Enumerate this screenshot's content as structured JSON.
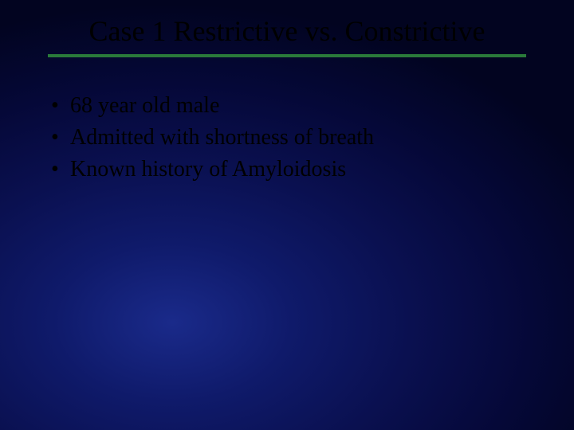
{
  "slide": {
    "title": "Case 1 Restrictive vs. Constrictive",
    "divider_color": "#2a7a3a",
    "bullets": [
      "68 year old male",
      "Admitted with shortness of breath",
      "Known history of Amyloidosis"
    ],
    "background": {
      "type": "radial-gradient",
      "colors": [
        "#1a2a8a",
        "#0f1a6a",
        "#0a1050",
        "#050838",
        "#020420"
      ]
    },
    "title_fontsize": 36,
    "bullet_fontsize": 28,
    "text_color": "#000000",
    "font_family": "Times New Roman"
  }
}
